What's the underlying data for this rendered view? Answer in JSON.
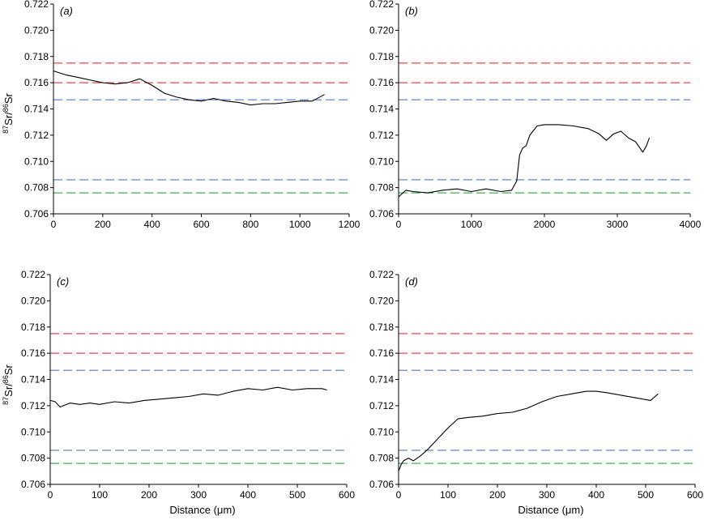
{
  "figure": {
    "ylabel": {
      "sup1": "87",
      "base1": "Sr/",
      "sup2": "86",
      "base2": "Sr"
    },
    "xlabel": "Distance (μm)"
  },
  "colors": {
    "red": "#e8484f",
    "blue": "#5579c0",
    "green": "#3fb356",
    "line": "#000000"
  },
  "chart_data": [
    {
      "type": "line",
      "panel_label": "(a)",
      "xlim": [
        0,
        1200
      ],
      "xticks": [
        0,
        200,
        400,
        600,
        800,
        1000,
        1200
      ],
      "ylim": [
        0.706,
        0.722
      ],
      "yticks": [
        0.706,
        0.708,
        0.71,
        0.712,
        0.714,
        0.716,
        0.718,
        0.72,
        0.722
      ],
      "xlabel": "",
      "ylabel_shown": true,
      "reference_lines": [
        {
          "y": 0.7175,
          "color": "red"
        },
        {
          "y": 0.716,
          "color": "red"
        },
        {
          "y": 0.7147,
          "color": "blue"
        },
        {
          "y": 0.7086,
          "color": "blue"
        },
        {
          "y": 0.7076,
          "color": "green"
        }
      ],
      "series": [
        {
          "x": [
            0,
            50,
            100,
            150,
            200,
            250,
            300,
            350,
            400,
            450,
            500,
            550,
            600,
            650,
            700,
            750,
            800,
            850,
            900,
            950,
            1000,
            1050,
            1100
          ],
          "y": [
            0.7169,
            0.7166,
            0.7164,
            0.7162,
            0.716,
            0.7159,
            0.716,
            0.7163,
            0.7158,
            0.7152,
            0.7149,
            0.7147,
            0.7146,
            0.7148,
            0.7146,
            0.7145,
            0.7143,
            0.7144,
            0.7144,
            0.7145,
            0.7146,
            0.7146,
            0.7151
          ]
        }
      ]
    },
    {
      "type": "line",
      "panel_label": "(b)",
      "xlim": [
        0,
        4000
      ],
      "xticks": [
        0,
        1000,
        2000,
        3000,
        4000
      ],
      "ylim": [
        0.706,
        0.722
      ],
      "yticks": [
        0.706,
        0.708,
        0.71,
        0.712,
        0.714,
        0.716,
        0.718,
        0.72,
        0.722
      ],
      "xlabel": "",
      "ylabel_shown": false,
      "reference_lines": [
        {
          "y": 0.7175,
          "color": "red"
        },
        {
          "y": 0.716,
          "color": "red"
        },
        {
          "y": 0.7147,
          "color": "blue"
        },
        {
          "y": 0.7086,
          "color": "blue"
        },
        {
          "y": 0.7076,
          "color": "green"
        }
      ],
      "series": [
        {
          "x": [
            0,
            100,
            200,
            400,
            600,
            800,
            1000,
            1200,
            1400,
            1550,
            1620,
            1660,
            1700,
            1750,
            1800,
            1900,
            2000,
            2200,
            2400,
            2600,
            2750,
            2850,
            2950,
            3050,
            3150,
            3250,
            3350,
            3400,
            3440
          ],
          "y": [
            0.7073,
            0.7078,
            0.7077,
            0.7076,
            0.7078,
            0.7079,
            0.7077,
            0.7079,
            0.7077,
            0.7078,
            0.7085,
            0.7105,
            0.711,
            0.7112,
            0.712,
            0.7127,
            0.7128,
            0.7128,
            0.7127,
            0.7125,
            0.7121,
            0.7116,
            0.7121,
            0.7123,
            0.7118,
            0.7115,
            0.7107,
            0.7112,
            0.7118
          ]
        }
      ]
    },
    {
      "type": "line",
      "panel_label": "(c)",
      "xlim": [
        0,
        600
      ],
      "xticks": [
        0,
        100,
        200,
        300,
        400,
        500,
        600
      ],
      "ylim": [
        0.706,
        0.722
      ],
      "yticks": [
        0.706,
        0.708,
        0.71,
        0.712,
        0.714,
        0.716,
        0.718,
        0.72,
        0.722
      ],
      "xlabel": "Distance (μm)",
      "ylabel_shown": true,
      "reference_lines": [
        {
          "y": 0.7175,
          "color": "red"
        },
        {
          "y": 0.716,
          "color": "red"
        },
        {
          "y": 0.7147,
          "color": "blue"
        },
        {
          "y": 0.7086,
          "color": "blue"
        },
        {
          "y": 0.7076,
          "color": "green"
        }
      ],
      "series": [
        {
          "x": [
            0,
            10,
            20,
            40,
            60,
            80,
            100,
            130,
            160,
            190,
            220,
            250,
            280,
            310,
            340,
            370,
            400,
            430,
            460,
            490,
            520,
            550,
            560
          ],
          "y": [
            0.7124,
            0.7123,
            0.7119,
            0.7122,
            0.7121,
            0.7122,
            0.7121,
            0.7123,
            0.7122,
            0.7124,
            0.7125,
            0.7126,
            0.7127,
            0.7129,
            0.7128,
            0.7131,
            0.7133,
            0.7132,
            0.7134,
            0.7132,
            0.7133,
            0.7133,
            0.7132
          ]
        }
      ]
    },
    {
      "type": "line",
      "panel_label": "(d)",
      "xlim": [
        0,
        600
      ],
      "xticks": [
        0,
        100,
        200,
        300,
        400,
        500,
        600
      ],
      "ylim": [
        0.706,
        0.722
      ],
      "yticks": [
        0.706,
        0.708,
        0.71,
        0.712,
        0.714,
        0.716,
        0.718,
        0.72,
        0.722
      ],
      "xlabel": "Distance (μm)",
      "ylabel_shown": false,
      "reference_lines": [
        {
          "y": 0.7175,
          "color": "red"
        },
        {
          "y": 0.716,
          "color": "red"
        },
        {
          "y": 0.7147,
          "color": "blue"
        },
        {
          "y": 0.7086,
          "color": "blue"
        },
        {
          "y": 0.7076,
          "color": "green"
        }
      ],
      "series": [
        {
          "x": [
            0,
            5,
            10,
            20,
            30,
            45,
            60,
            80,
            100,
            120,
            140,
            170,
            200,
            230,
            260,
            290,
            320,
            350,
            380,
            400,
            420,
            450,
            480,
            510,
            525
          ],
          "y": [
            0.707,
            0.7075,
            0.7078,
            0.708,
            0.7078,
            0.7082,
            0.7087,
            0.7095,
            0.7103,
            0.711,
            0.7111,
            0.7112,
            0.7114,
            0.7115,
            0.7118,
            0.7123,
            0.7127,
            0.7129,
            0.7131,
            0.7131,
            0.713,
            0.7128,
            0.7126,
            0.7124,
            0.7129
          ]
        }
      ]
    }
  ]
}
